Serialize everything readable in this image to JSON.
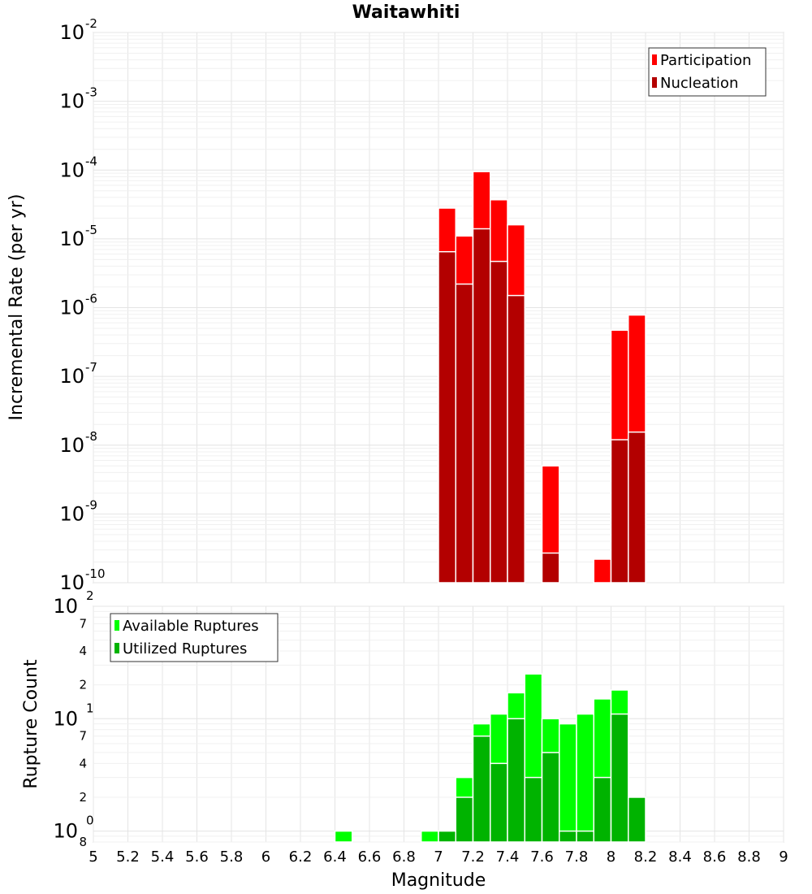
{
  "title": "Waitawhiti",
  "chart_data": [
    {
      "type": "bar",
      "ylabel": "Incremental Rate (per yr)",
      "yscale": "log",
      "ylim": [
        1e-10,
        0.01
      ],
      "xlim": [
        5,
        9
      ],
      "bin_width": 0.1,
      "legend_position": "top-right",
      "series": [
        {
          "name": "Participation",
          "color": "#ff0000",
          "points": [
            {
              "x": 7.05,
              "y": 2.8e-05
            },
            {
              "x": 7.15,
              "y": 1.1e-05
            },
            {
              "x": 7.25,
              "y": 9.5e-05
            },
            {
              "x": 7.35,
              "y": 3.7e-05
            },
            {
              "x": 7.45,
              "y": 1.6e-05
            },
            {
              "x": 7.65,
              "y": 5e-09
            },
            {
              "x": 7.95,
              "y": 2.2e-10
            },
            {
              "x": 8.05,
              "y": 4.7e-07
            },
            {
              "x": 8.15,
              "y": 7.8e-07
            }
          ]
        },
        {
          "name": "Nucleation",
          "color": "#b30000",
          "points": [
            {
              "x": 7.05,
              "y": 6.5e-06
            },
            {
              "x": 7.15,
              "y": 2.2e-06
            },
            {
              "x": 7.25,
              "y": 1.4e-05
            },
            {
              "x": 7.35,
              "y": 4.7e-06
            },
            {
              "x": 7.45,
              "y": 1.5e-06
            },
            {
              "x": 7.65,
              "y": 2.7e-10
            },
            {
              "x": 8.05,
              "y": 1.2e-08
            },
            {
              "x": 8.15,
              "y": 1.55e-08
            }
          ]
        }
      ]
    },
    {
      "type": "bar",
      "ylabel": "Rupture Count",
      "xlabel": "Magnitude",
      "yscale": "log",
      "ylim": [
        0.8,
        100
      ],
      "xlim": [
        5,
        9
      ],
      "bin_width": 0.1,
      "legend_position": "top-left",
      "series": [
        {
          "name": "Available Ruptures",
          "color": "#00ff00",
          "points": [
            {
              "x": 6.45,
              "y": 1
            },
            {
              "x": 6.95,
              "y": 1
            },
            {
              "x": 7.05,
              "y": 1
            },
            {
              "x": 7.15,
              "y": 3
            },
            {
              "x": 7.25,
              "y": 9
            },
            {
              "x": 7.35,
              "y": 11
            },
            {
              "x": 7.45,
              "y": 17
            },
            {
              "x": 7.55,
              "y": 25
            },
            {
              "x": 7.65,
              "y": 10
            },
            {
              "x": 7.75,
              "y": 9
            },
            {
              "x": 7.85,
              "y": 11
            },
            {
              "x": 7.95,
              "y": 15
            },
            {
              "x": 8.05,
              "y": 18
            }
          ]
        },
        {
          "name": "Utilized Ruptures",
          "color": "#00b300",
          "points": [
            {
              "x": 7.05,
              "y": 1
            },
            {
              "x": 7.15,
              "y": 2
            },
            {
              "x": 7.25,
              "y": 7
            },
            {
              "x": 7.35,
              "y": 4
            },
            {
              "x": 7.45,
              "y": 10
            },
            {
              "x": 7.55,
              "y": 3
            },
            {
              "x": 7.65,
              "y": 5
            },
            {
              "x": 7.75,
              "y": 1
            },
            {
              "x": 7.85,
              "y": 1
            },
            {
              "x": 7.95,
              "y": 3
            },
            {
              "x": 8.05,
              "y": 11
            },
            {
              "x": 8.15,
              "y": 2
            }
          ]
        }
      ]
    }
  ],
  "x_ticks": [
    "5",
    "5.2",
    "5.4",
    "5.6",
    "5.8",
    "6",
    "6.2",
    "6.4",
    "6.6",
    "6.8",
    "7",
    "7.2",
    "7.4",
    "7.6",
    "7.8",
    "8",
    "8.2",
    "8.4",
    "8.6",
    "8.8",
    "9"
  ],
  "top_y_ticks": [
    {
      "base": "10",
      "exp": "-2"
    },
    {
      "base": "10",
      "exp": "-3"
    },
    {
      "base": "10",
      "exp": "-4"
    },
    {
      "base": "10",
      "exp": "-5"
    },
    {
      "base": "10",
      "exp": "-6"
    },
    {
      "base": "10",
      "exp": "-7"
    },
    {
      "base": "10",
      "exp": "-8"
    },
    {
      "base": "10",
      "exp": "-9"
    },
    {
      "base": "10",
      "exp": "-10"
    }
  ],
  "bottom_y_ticks": {
    "major": [
      {
        "base": "10",
        "exp": "2"
      },
      {
        "base": "10",
        "exp": "1"
      },
      {
        "base": "10",
        "exp": "0"
      }
    ],
    "minor": [
      "7",
      "4",
      "2",
      "7",
      "4",
      "2",
      "8"
    ]
  }
}
